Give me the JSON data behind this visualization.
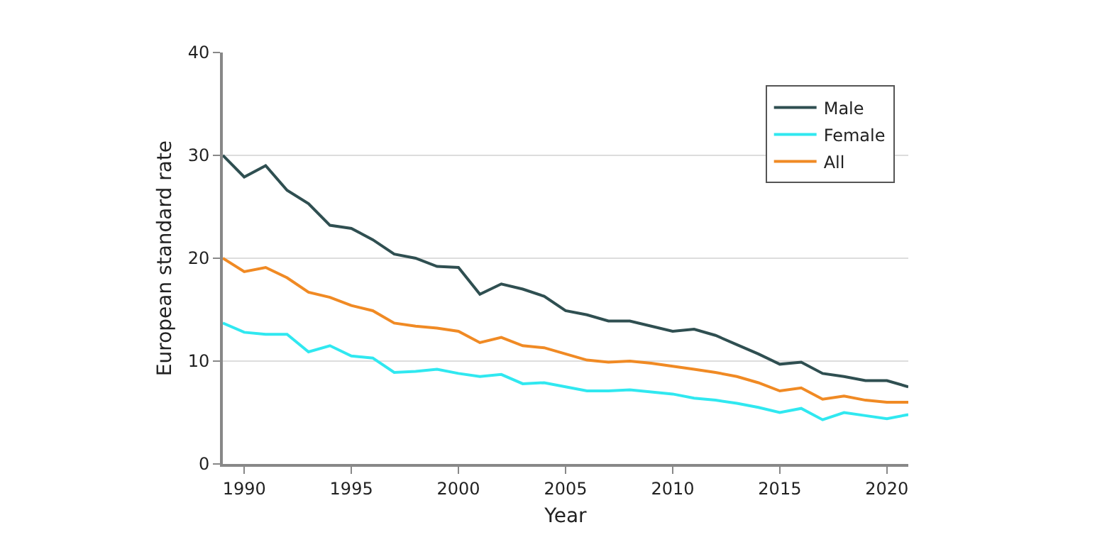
{
  "chart_data": {
    "type": "line",
    "xlabel": "Year",
    "ylabel": "European standard rate",
    "x": [
      1989,
      1990,
      1991,
      1992,
      1993,
      1994,
      1995,
      1996,
      1997,
      1998,
      1999,
      2000,
      2001,
      2002,
      2003,
      2004,
      2005,
      2006,
      2007,
      2008,
      2009,
      2010,
      2011,
      2012,
      2013,
      2014,
      2015,
      2016,
      2017,
      2018,
      2019,
      2020,
      2021
    ],
    "series": [
      {
        "name": "Male",
        "color": "#2f4f51",
        "values": [
          30.0,
          27.9,
          29.0,
          26.6,
          25.3,
          23.2,
          22.9,
          21.8,
          20.4,
          20.0,
          19.2,
          19.1,
          16.5,
          17.5,
          17.0,
          16.3,
          14.9,
          14.5,
          13.9,
          13.9,
          13.4,
          12.9,
          13.1,
          12.5,
          11.6,
          10.7,
          9.7,
          9.9,
          8.8,
          8.5,
          8.1,
          8.1,
          7.5
        ]
      },
      {
        "name": "Female",
        "color": "#30e8f0",
        "values": [
          13.7,
          12.8,
          12.6,
          12.6,
          10.9,
          11.5,
          10.5,
          10.3,
          8.9,
          9.0,
          9.2,
          8.8,
          8.5,
          8.7,
          7.8,
          7.9,
          7.5,
          7.1,
          7.1,
          7.2,
          7.0,
          6.8,
          6.4,
          6.2,
          5.9,
          5.5,
          5.0,
          5.4,
          4.3,
          5.0,
          4.7,
          4.4,
          4.8
        ]
      },
      {
        "name": "All",
        "color": "#f08a24",
        "values": [
          20.0,
          18.7,
          19.1,
          18.1,
          16.7,
          16.2,
          15.4,
          14.9,
          13.7,
          13.4,
          13.2,
          12.9,
          11.8,
          12.3,
          11.5,
          11.3,
          10.7,
          10.1,
          9.9,
          10.0,
          9.8,
          9.5,
          9.2,
          8.9,
          8.5,
          7.9,
          7.1,
          7.4,
          6.3,
          6.6,
          6.2,
          6.0,
          6.0
        ]
      }
    ],
    "xlim": [
      1989,
      2021
    ],
    "xticks": [
      1990,
      1995,
      2000,
      2005,
      2010,
      2015,
      2020
    ],
    "ylim": [
      0,
      40
    ],
    "yticks": [
      0,
      10,
      20,
      30,
      40
    ],
    "grid": "y",
    "legend": "top right",
    "marker": "none",
    "line_style": "solid"
  }
}
